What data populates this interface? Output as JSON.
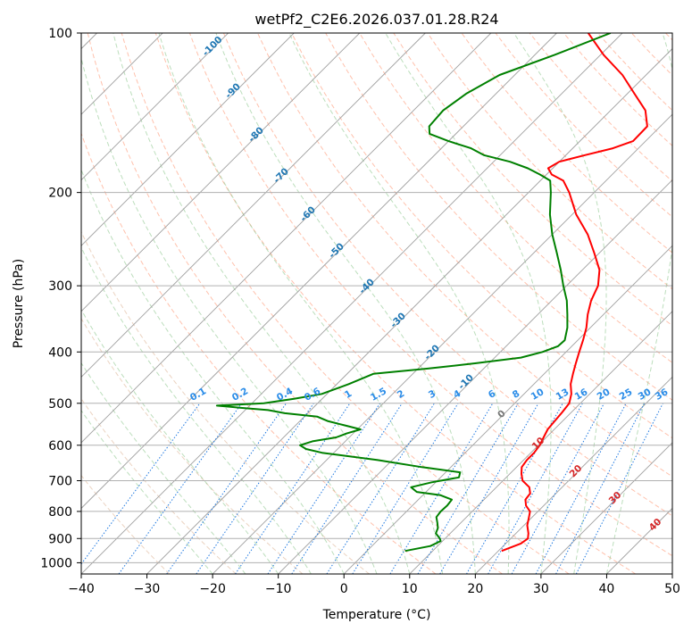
{
  "chart_data": {
    "type": "skew-t",
    "title": "wetPf2_C2E6.2026.037.01.28.R24",
    "xlabel": "Temperature (°C)",
    "ylabel": "Pressure (hPa)",
    "xlim": [
      -40,
      50
    ],
    "ylim": [
      1050,
      100
    ],
    "y_scale": "log",
    "grid": true,
    "x_ticks": [
      "−40",
      "−30",
      "−20",
      "−10",
      "0",
      "10",
      "20",
      "30",
      "40",
      "50"
    ],
    "y_ticks": [
      {
        "p": 100,
        "label": "100"
      },
      {
        "p": 200,
        "label": "200"
      },
      {
        "p": 300,
        "label": "300"
      },
      {
        "p": 400,
        "label": "400"
      },
      {
        "p": 500,
        "label": "500"
      },
      {
        "p": 600,
        "label": "600"
      },
      {
        "p": 700,
        "label": "700"
      },
      {
        "p": 800,
        "label": "800"
      },
      {
        "p": 900,
        "label": "900"
      },
      {
        "p": 1000,
        "label": "1000"
      }
    ],
    "series": [
      {
        "color": "#ff0000",
        "points": [
          [
            950,
            20.5
          ],
          [
            920,
            22.3
          ],
          [
            900,
            22.6
          ],
          [
            880,
            21.9
          ],
          [
            850,
            20.5
          ],
          [
            820,
            19.5
          ],
          [
            800,
            18.8
          ],
          [
            780,
            17.3
          ],
          [
            760,
            16.3
          ],
          [
            740,
            16.1
          ],
          [
            720,
            15.0
          ],
          [
            700,
            13.0
          ],
          [
            680,
            11.8
          ],
          [
            660,
            10.8
          ],
          [
            640,
            10.5
          ],
          [
            620,
            10.5
          ],
          [
            600,
            10.2
          ],
          [
            580,
            9.6
          ],
          [
            560,
            9.0
          ],
          [
            540,
            8.8
          ],
          [
            520,
            8.6
          ],
          [
            500,
            8.3
          ],
          [
            480,
            7.2
          ],
          [
            460,
            5.6
          ],
          [
            440,
            4.4
          ],
          [
            420,
            3.2
          ],
          [
            400,
            2.0
          ],
          [
            380,
            0.8
          ],
          [
            360,
            -0.6
          ],
          [
            340,
            -2.4
          ],
          [
            320,
            -4.0
          ],
          [
            300,
            -5.2
          ],
          [
            280,
            -7.4
          ],
          [
            260,
            -10.8
          ],
          [
            240,
            -14.6
          ],
          [
            220,
            -19.4
          ],
          [
            200,
            -23.8
          ],
          [
            190,
            -26.5
          ],
          [
            185,
            -29.2
          ],
          [
            180,
            -30.7
          ],
          [
            175,
            -30.0
          ],
          [
            170,
            -27.1
          ],
          [
            165,
            -23.9
          ],
          [
            160,
            -21.9
          ],
          [
            150,
            -22.0
          ],
          [
            140,
            -24.7
          ],
          [
            130,
            -29.0
          ],
          [
            120,
            -33.6
          ],
          [
            110,
            -39.5
          ],
          [
            100,
            -45.2
          ]
        ]
      },
      {
        "color": "#008000",
        "points": [
          [
            950,
            5.8
          ],
          [
            930,
            8.9
          ],
          [
            910,
            9.7
          ],
          [
            900,
            9.2
          ],
          [
            880,
            7.8
          ],
          [
            860,
            7.3
          ],
          [
            840,
            6.4
          ],
          [
            820,
            5.4
          ],
          [
            800,
            5.2
          ],
          [
            780,
            5.3
          ],
          [
            760,
            5.1
          ],
          [
            745,
            2.6
          ],
          [
            735,
            -1.4
          ],
          [
            720,
            -3.0
          ],
          [
            705,
            -0.6
          ],
          [
            690,
            2.8
          ],
          [
            675,
            2.2
          ],
          [
            660,
            -4.4
          ],
          [
            640,
            -12.2
          ],
          [
            620,
            -21.8
          ],
          [
            610,
            -24.8
          ],
          [
            600,
            -26.3
          ],
          [
            590,
            -25.0
          ],
          [
            580,
            -22.0
          ],
          [
            570,
            -21.0
          ],
          [
            560,
            -19.5
          ],
          [
            550,
            -22.6
          ],
          [
            540,
            -25.8
          ],
          [
            530,
            -28.0
          ],
          [
            522,
            -33.5
          ],
          [
            515,
            -36.5
          ],
          [
            510,
            -41.0
          ],
          [
            505,
            -45.0
          ],
          [
            500,
            -38.2
          ],
          [
            490,
            -34.2
          ],
          [
            480,
            -30.8
          ],
          [
            460,
            -28.2
          ],
          [
            440,
            -26.0
          ],
          [
            430,
            -18.5
          ],
          [
            420,
            -12.0
          ],
          [
            410,
            -6.0
          ],
          [
            400,
            -3.6
          ],
          [
            390,
            -2.1
          ],
          [
            380,
            -2.0
          ],
          [
            360,
            -3.5
          ],
          [
            340,
            -5.5
          ],
          [
            320,
            -7.7
          ],
          [
            300,
            -10.5
          ],
          [
            280,
            -13.3
          ],
          [
            260,
            -16.5
          ],
          [
            240,
            -20.0
          ],
          [
            220,
            -23.4
          ],
          [
            200,
            -26.6
          ],
          [
            190,
            -28.5
          ],
          [
            185,
            -31.0
          ],
          [
            180,
            -33.8
          ],
          [
            175,
            -37.5
          ],
          [
            170,
            -42.5
          ],
          [
            165,
            -45.5
          ],
          [
            160,
            -50.0
          ],
          [
            155,
            -54.0
          ],
          [
            150,
            -55.2
          ],
          [
            140,
            -55.5
          ],
          [
            130,
            -54.5
          ],
          [
            120,
            -52.3
          ],
          [
            110,
            -47.0
          ],
          [
            100,
            -41.8
          ]
        ]
      }
    ],
    "isotherm_labels": [
      "-100",
      "-90",
      "-80",
      "-70",
      "-60",
      "-50",
      "-40",
      "-30",
      "-20",
      "-10",
      "0",
      "10",
      "20",
      "30",
      "40"
    ],
    "mixing_ratio_labels": [
      "0.1",
      "0.2",
      "0.4",
      "0.6",
      "1",
      "1.5",
      "2",
      "3",
      "4",
      "6",
      "8",
      "10",
      "13",
      "16",
      "20",
      "25",
      "30",
      "36"
    ],
    "mixing_ratio_values": [
      0.1,
      0.2,
      0.4,
      0.6,
      1,
      1.5,
      2,
      3,
      4,
      6,
      8,
      10,
      13,
      16,
      20,
      25,
      30,
      36
    ],
    "colors": {
      "grid": "#b0b0b0",
      "isotherm": "#a0a0a0",
      "dry_adiabat": "#e0bba0",
      "dry_adiabat_dashed": "#ffa080",
      "moist_adiabat": "#90c890",
      "mixing_ratio": "#1e78e0",
      "label_blue": "#1f77b4",
      "label_mix": "#2a8ce8",
      "label_red": "#d62728",
      "label_zero": "#777777"
    }
  }
}
